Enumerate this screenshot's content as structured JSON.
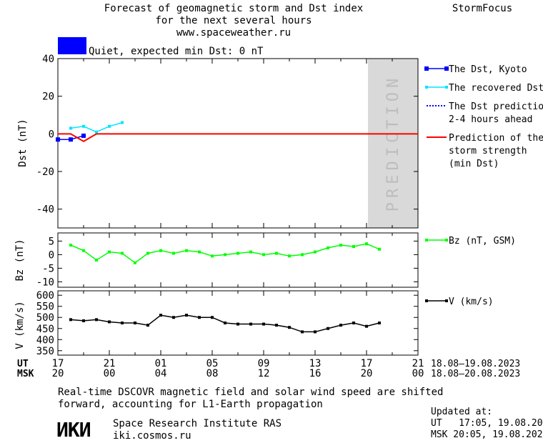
{
  "header": {
    "title_lines": [
      "Forecast of geomagnetic storm and Dst index",
      "for the next several hours",
      "www.spaceweather.ru"
    ],
    "brand": "StormFocus",
    "status_text": "Quiet, expected min Dst: 0 nT",
    "status_color": "#0000ff"
  },
  "prediction_label": "PREDICTION",
  "time_axis": {
    "ut_label": "UT",
    "msk_label": "MSK",
    "ut_ticks": [
      "17",
      "21",
      "01",
      "05",
      "09",
      "13",
      "17",
      "21"
    ],
    "msk_ticks": [
      "20",
      "00",
      "04",
      "08",
      "12",
      "16",
      "20",
      "00"
    ],
    "ut_range_text": "18.08–19.08.2023",
    "msk_range_text": "18.08–20.08.2023"
  },
  "footer": {
    "note_lines": [
      "Real-time DSCOVR magnetic field and solar wind speed are shifted",
      "forward, accounting for L1-Earth propagation"
    ],
    "logo_text": "ИКИ",
    "institute": "Space Research Institute RAS",
    "site": "iki.cosmos.ru",
    "updated_label": "Updated at:",
    "updated_ut": "UT   17:05, 19.08.2023",
    "updated_msk": "MSK 20:05, 19.08.2023"
  },
  "colors": {
    "dst_kyoto": "#0000ff",
    "recovered": "#00e5ff",
    "prediction_dots": "#0000ff",
    "storm_strength": "#ff0000",
    "bz": "#00ff00",
    "v": "#000000",
    "prediction_band": "#d9d9d9"
  },
  "chart_data": [
    {
      "type": "line",
      "ylabel": "Dst (nT)",
      "ylim": [
        -50,
        40
      ],
      "yticks": [
        40,
        20,
        0,
        -20,
        -40
      ],
      "xlim_hours_from_17UT": [
        0,
        28
      ],
      "prediction_from_hour": 24,
      "legend": [
        {
          "text": [
            "The Dst, Kyoto"
          ],
          "key": "dst_kyoto",
          "style": "square-line"
        },
        {
          "text": [
            "The recovered Dst"
          ],
          "key": "recovered",
          "style": "small-square-line"
        },
        {
          "text": [
            "The Dst prediction",
            "2-4 hours ahead"
          ],
          "key": "prediction_dots",
          "style": "dotted"
        },
        {
          "text": [
            "Prediction of the",
            "storm strength",
            "(min Dst)"
          ],
          "key": "storm_strength",
          "style": "line"
        }
      ],
      "series": [
        {
          "name": "The Dst, Kyoto",
          "key": "dst_kyoto",
          "x": [
            0,
            1,
            2
          ],
          "y": [
            -3,
            -3,
            -1
          ]
        },
        {
          "name": "The recovered Dst",
          "key": "recovered",
          "x": [
            1,
            2,
            3,
            4,
            5
          ],
          "y": [
            3,
            4,
            1,
            4,
            6
          ]
        },
        {
          "name": "Prediction of the storm strength (min Dst)",
          "key": "storm_strength",
          "x": [
            0,
            1,
            2,
            3,
            28
          ],
          "y": [
            0,
            0,
            -4,
            0,
            0
          ]
        }
      ]
    },
    {
      "type": "line",
      "ylabel": "Bz (nT)",
      "ylim": [
        -12,
        8
      ],
      "yticks": [
        5,
        0,
        -5,
        -10
      ],
      "legend": [
        {
          "text": [
            "Bz (nT, GSM)"
          ],
          "key": "bz",
          "style": "small-square-line"
        }
      ],
      "series": [
        {
          "name": "Bz (nT, GSM)",
          "key": "bz",
          "x": [
            1,
            2,
            3,
            4,
            5,
            6,
            7,
            8,
            9,
            10,
            11,
            12,
            13,
            14,
            15,
            16,
            17,
            18,
            19,
            20,
            21,
            22,
            23,
            24,
            25
          ],
          "y": [
            3.5,
            1.5,
            -2,
            1,
            0.5,
            -3,
            0.5,
            1.5,
            0.5,
            1.5,
            1,
            -0.5,
            0,
            0.5,
            1,
            0,
            0.5,
            -0.5,
            0,
            1,
            2.5,
            3.5,
            3,
            4,
            2
          ]
        }
      ]
    },
    {
      "type": "line",
      "ylabel": "V (km/s)",
      "ylim": [
        330,
        620
      ],
      "yticks": [
        600,
        550,
        500,
        450,
        400,
        350
      ],
      "legend": [
        {
          "text": [
            "V (km/s)"
          ],
          "key": "v",
          "style": "small-square-line"
        }
      ],
      "series": [
        {
          "name": "V (km/s)",
          "key": "v",
          "x": [
            1,
            2,
            3,
            4,
            5,
            6,
            7,
            8,
            9,
            10,
            11,
            12,
            13,
            14,
            15,
            16,
            17,
            18,
            19,
            20,
            21,
            22,
            23,
            24,
            25
          ],
          "y": [
            490,
            485,
            490,
            480,
            475,
            475,
            465,
            510,
            500,
            510,
            500,
            500,
            475,
            470,
            470,
            470,
            465,
            455,
            435,
            435,
            450,
            465,
            475,
            460,
            475
          ]
        }
      ]
    }
  ]
}
